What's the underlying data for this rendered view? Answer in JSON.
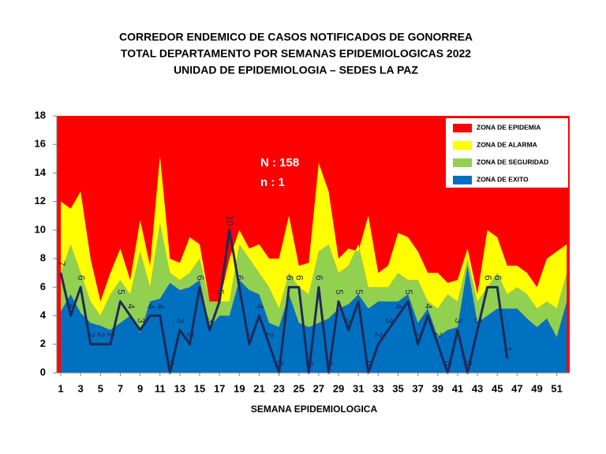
{
  "chart_data": {
    "type": "area",
    "title_lines": [
      "CORREDOR ENDEMICO DE CASOS NOTIFICADOS DE GONORREA",
      "TOTAL DEPARTAMENTO POR SEMANAS EPIDEMIOLOGICAS 2022",
      "UNIDAD DE EPIDEMIOLOGIA – SEDES LA PAZ"
    ],
    "x_label": "SEMANA EPIDEMIOLOGICA",
    "annotations": [
      "N : 158",
      "n : 1"
    ],
    "x": [
      1,
      2,
      3,
      4,
      5,
      6,
      7,
      8,
      9,
      10,
      11,
      12,
      13,
      14,
      15,
      16,
      17,
      18,
      19,
      20,
      21,
      22,
      23,
      24,
      25,
      26,
      27,
      28,
      29,
      30,
      31,
      32,
      33,
      34,
      35,
      36,
      37,
      38,
      39,
      40,
      41,
      42,
      43,
      44,
      45,
      46,
      47,
      48,
      49,
      50,
      51,
      52
    ],
    "xlim": [
      0.6,
      52.3
    ],
    "xticks": [
      1,
      3,
      5,
      7,
      9,
      11,
      13,
      15,
      17,
      19,
      21,
      23,
      25,
      27,
      29,
      31,
      33,
      35,
      37,
      39,
      41,
      43,
      45,
      47,
      49,
      51
    ],
    "ylim": [
      0,
      18
    ],
    "yticks": [
      0,
      2,
      4,
      6,
      8,
      10,
      12,
      14,
      16,
      18
    ],
    "epidemic_zone": {
      "name": "ZONA DE EPIDEMIA",
      "color": "#ff0000"
    },
    "series": [
      {
        "name": "ZONA DE EXITO",
        "color": "#0070c0",
        "values": [
          4.3,
          5.5,
          4.2,
          3.5,
          3.3,
          3,
          3.5,
          4,
          2.8,
          5,
          5.2,
          6.3,
          5.8,
          6,
          6.5,
          3.2,
          4,
          4,
          6.5,
          5.8,
          5.5,
          3.5,
          3.2,
          5.5,
          3.5,
          3.2,
          3.5,
          3.8,
          4.5,
          4.8,
          5.5,
          4.5,
          5,
          5,
          5,
          5.5,
          3.5,
          4.5,
          2.5,
          3,
          3.2,
          7.5,
          3.5,
          4,
          4.5,
          4.5,
          4.5,
          3.8,
          3.2,
          3.8,
          2.5,
          5
        ]
      },
      {
        "name": "ZONA DE  SEGURIDAD",
        "color": "#92d050",
        "values": [
          7,
          9,
          7,
          5,
          4,
          5.5,
          6.5,
          5.5,
          8.5,
          6,
          10.5,
          7,
          6.5,
          7,
          8,
          5,
          5,
          5,
          9,
          8,
          7,
          6,
          4.5,
          7,
          6,
          5.5,
          8.5,
          9,
          7,
          7.5,
          9,
          6,
          6,
          6,
          7,
          6.5,
          6.5,
          5,
          4.5,
          5.5,
          5,
          8,
          5,
          6,
          7,
          5.5,
          6,
          5.5,
          4.5,
          5,
          4.5,
          7
        ]
      },
      {
        "name": "ZONA DE ALARMA",
        "color": "#ffff00",
        "values": [
          12,
          11.5,
          12.7,
          8,
          5,
          7,
          8.7,
          6.5,
          10.7,
          7.5,
          15.2,
          8,
          7.7,
          9.5,
          9,
          5,
          5,
          8,
          10,
          8.7,
          9,
          8,
          8,
          11,
          7.5,
          7.7,
          14.7,
          12.7,
          8,
          8.7,
          8.5,
          11,
          7,
          7.5,
          9.8,
          9.5,
          8.5,
          7,
          7,
          6.3,
          6.5,
          8.7,
          5.5,
          10,
          9.5,
          7.5,
          7.5,
          7,
          6,
          8,
          8.5,
          9
        ]
      }
    ],
    "cases": {
      "color": "#1f2a5a",
      "values": [
        7,
        4,
        6,
        2,
        2,
        2,
        5,
        4,
        3,
        4,
        4,
        0,
        3,
        2,
        6,
        3,
        5,
        10,
        6,
        2,
        4,
        2,
        0,
        6,
        6,
        0,
        6,
        0,
        5,
        3,
        5,
        0,
        2,
        3,
        4,
        5,
        2,
        4,
        2,
        0,
        3,
        0,
        3,
        6,
        6,
        1,
        null,
        null,
        null,
        null,
        null,
        null
      ]
    }
  }
}
